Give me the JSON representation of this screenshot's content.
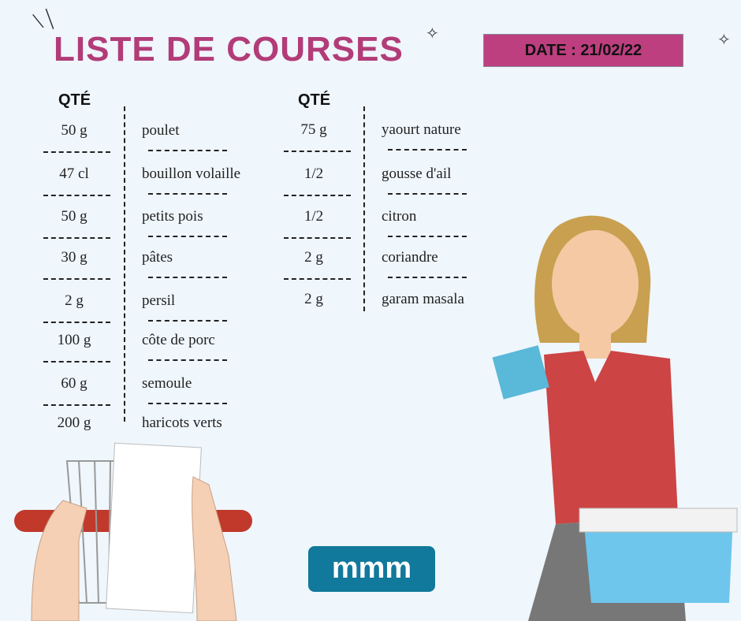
{
  "title": "LISTE DE COURSES",
  "date": "DATE : 21/02/22",
  "qty_header": "QTÉ",
  "left_list": [
    {
      "qty": "50 g",
      "item": "poulet"
    },
    {
      "qty": "47 cl",
      "item": "bouillon volaille"
    },
    {
      "qty": "50 g",
      "item": "petits pois"
    },
    {
      "qty": "30 g",
      "item": "pâtes"
    },
    {
      "qty": "2 g",
      "item": "persil"
    },
    {
      "qty": "100 g",
      "item": "côte de porc"
    },
    {
      "qty": "60 g",
      "item": "semoule"
    },
    {
      "qty": "200 g",
      "item": "haricots verts"
    }
  ],
  "right_list": [
    {
      "qty": "75 g",
      "item": "yaourt nature"
    },
    {
      "qty": "1/2",
      "item": "gousse d'ail"
    },
    {
      "qty": "1/2",
      "item": "citron"
    },
    {
      "qty": "2 g",
      "item": "coriandre"
    },
    {
      "qty": "2 g",
      "item": "garam masala"
    }
  ],
  "logo": "mmm",
  "colors": {
    "title": "#b23c78",
    "date_bg": "#bd3f7f",
    "logo_bg": "#11799b",
    "background": "#eff6fc"
  }
}
